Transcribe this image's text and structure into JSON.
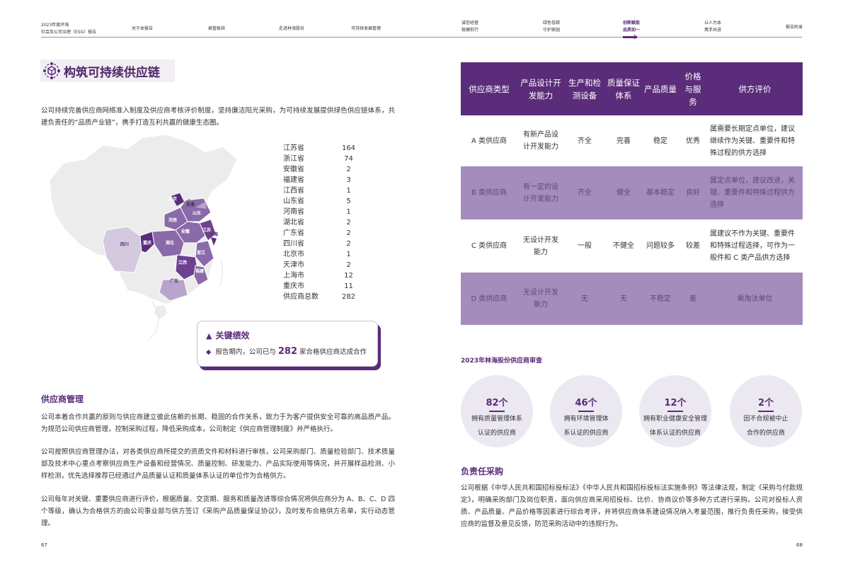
{
  "nav": {
    "report_line1": "2023年度环境",
    "report_line2": "社会及公司治理（ESG）报告",
    "items": [
      {
        "l1": "关于本报告",
        "l2": ""
      },
      {
        "l1": "高管致辞",
        "l2": ""
      },
      {
        "l1": "走进林海股份",
        "l2": ""
      },
      {
        "l1": "可持续发展管理",
        "l2": ""
      },
      {
        "l1": "诚信经营",
        "l2": "稳健前行"
      },
      {
        "l1": "绿色低碳",
        "l2": "守护家园"
      },
      {
        "l1": "创新赋能",
        "l2": "品质如一"
      },
      {
        "l1": "以人为本",
        "l2": "携手共进"
      },
      {
        "l1": "报告附录",
        "l2": ""
      }
    ]
  },
  "left": {
    "section_title": "构筑可持续供应链",
    "intro": "公司持续完善供应商网络准入制度及供应商考核评价制度，坚持廉洁阳光采购，为可持续发展提供绿色供应链体系，共建负责任的“品质产业链”，携手打造互利共赢的健康生态圈。",
    "map_labels": {
      "beijing": "北京",
      "tianjin": "天津",
      "shandong": "山东",
      "henan": "河南",
      "jiangsu": "江苏",
      "anhui": "安徽",
      "shanghai": "上海",
      "sichuan": "四川",
      "chongqing": "重庆",
      "hubei": "湖北",
      "zhejiang": "浙江",
      "jiangxi": "江西",
      "fujian": "福建",
      "guangdong": "广东"
    },
    "provinces": [
      {
        "name": "江苏省",
        "value": "164"
      },
      {
        "name": "浙江省",
        "value": "74"
      },
      {
        "name": "安徽省",
        "value": "2"
      },
      {
        "name": "福建省",
        "value": "3"
      },
      {
        "name": "江西省",
        "value": "1"
      },
      {
        "name": "山东省",
        "value": "5"
      },
      {
        "name": "河南省",
        "value": "1"
      },
      {
        "name": "湖北省",
        "value": "2"
      },
      {
        "name": "广东省",
        "value": "2"
      },
      {
        "name": "四川省",
        "value": "2"
      },
      {
        "name": "北京市",
        "value": "1"
      },
      {
        "name": "天津市",
        "value": "2"
      },
      {
        "name": "上海市",
        "value": "12"
      },
      {
        "name": "重庆市",
        "value": "11"
      },
      {
        "name": "供应商总数",
        "value": "282"
      }
    ],
    "kpi": {
      "title": "关键绩效",
      "pre": "报告期内，公司已与",
      "num": "282",
      "post": "家合格供应商达成合作"
    },
    "mgmt_title": "供应商管理",
    "p1": "公司本着合作共赢的原则与供应商建立彼此信赖的长期、稳固的合作关系，致力于为客户提供安全可靠的高品质产品。为规范公司供应商管理，控制采购过程，降低采购成本，公司制定《供应商管理制度》并严格执行。",
    "p2": "公司按照供应商管理办法，对各类供应商所提交的资质文件和材料进行审核，公司采购部门、质量检验部门、技术质量部及技术中心重点考察供应商生产设备和经营情况、质量控制、研发能力、产品实际使用等情况，并开展样品检测、小样检测，优先选择推荐已经通过产品质量认证和质量体系认证的单位作为合格供方。",
    "p3": "公司每年对关键、重要供应商进行评价，根据质量、交货期、服务和质量改进等综合情况将供应商分为 A、B、C、D 四个等级，确认为合格供方的由公司事业部与供方签订《采购产品质量保证协议》，及时发布合格供方名单，实行动态管理。",
    "page": "67"
  },
  "table": {
    "headers": [
      "供应商类型",
      "产品设计开发能力",
      "生产和检测设备",
      "质量保证体系",
      "产品质量",
      "价格与服务",
      "供方评价"
    ],
    "rows": [
      [
        "A 类供应商",
        "有新产品设计开发能力",
        "齐全",
        "完善",
        "稳定",
        "优秀",
        "属需要长期定点单位，建议继续作为关键、重要件和特殊过程的供方选择"
      ],
      [
        "B 类供应商",
        "有一定的设计开发能力",
        "齐全",
        "健全",
        "基本稳定",
        "良好",
        "属定点单位，建议改进，关键、重要件和特殊过程供方选择"
      ],
      [
        "C 类供应商",
        "无设计开发能力",
        "一般",
        "不健全",
        "问题较多",
        "较差",
        "属建议不作为关键、重要件和特殊过程选择，可作为一般件和 C 类产品供方选择"
      ],
      [
        "D 类供应商",
        "无设计开发能力",
        "无",
        "无",
        "不稳定",
        "差",
        "需淘汰单位"
      ]
    ]
  },
  "review": {
    "title": "2023年林海股份供应商审查",
    "items": [
      {
        "value": "82个",
        "l1": "拥有质量管理体系",
        "l2": "认证的供应商"
      },
      {
        "value": "46个",
        "l1": "拥有环境管理体",
        "l2": "系认证的供应商"
      },
      {
        "value": "12个",
        "l1": "拥有职业健康安全管理",
        "l2": "体系认证的供应商"
      },
      {
        "value": "2个",
        "l1": "因不合规被中止",
        "l2": "合作的供应商"
      }
    ]
  },
  "procure": {
    "title": "负责任采购",
    "text": "公司根据《中华人民共和国招标投标法》《中华人民共和国招标投标法实施条例》等法律法规，制定《采购与付款规定》，明确采购部门及岗位职责，面向供应商采用招投标、比价、协商议价等多种方式进行采购。公司对投标人资质、产品质量、产品价格等因素进行综合考评，并将供应商体系建设情况纳入考量范围，推行负责任采购，接受供应商的监督及意见反馈，防范采购活动中的违规行为。",
    "page": "68"
  },
  "colors": {
    "brand": "#5a2c79",
    "light": "#a48cbd",
    "bg": "#ece8f1"
  }
}
